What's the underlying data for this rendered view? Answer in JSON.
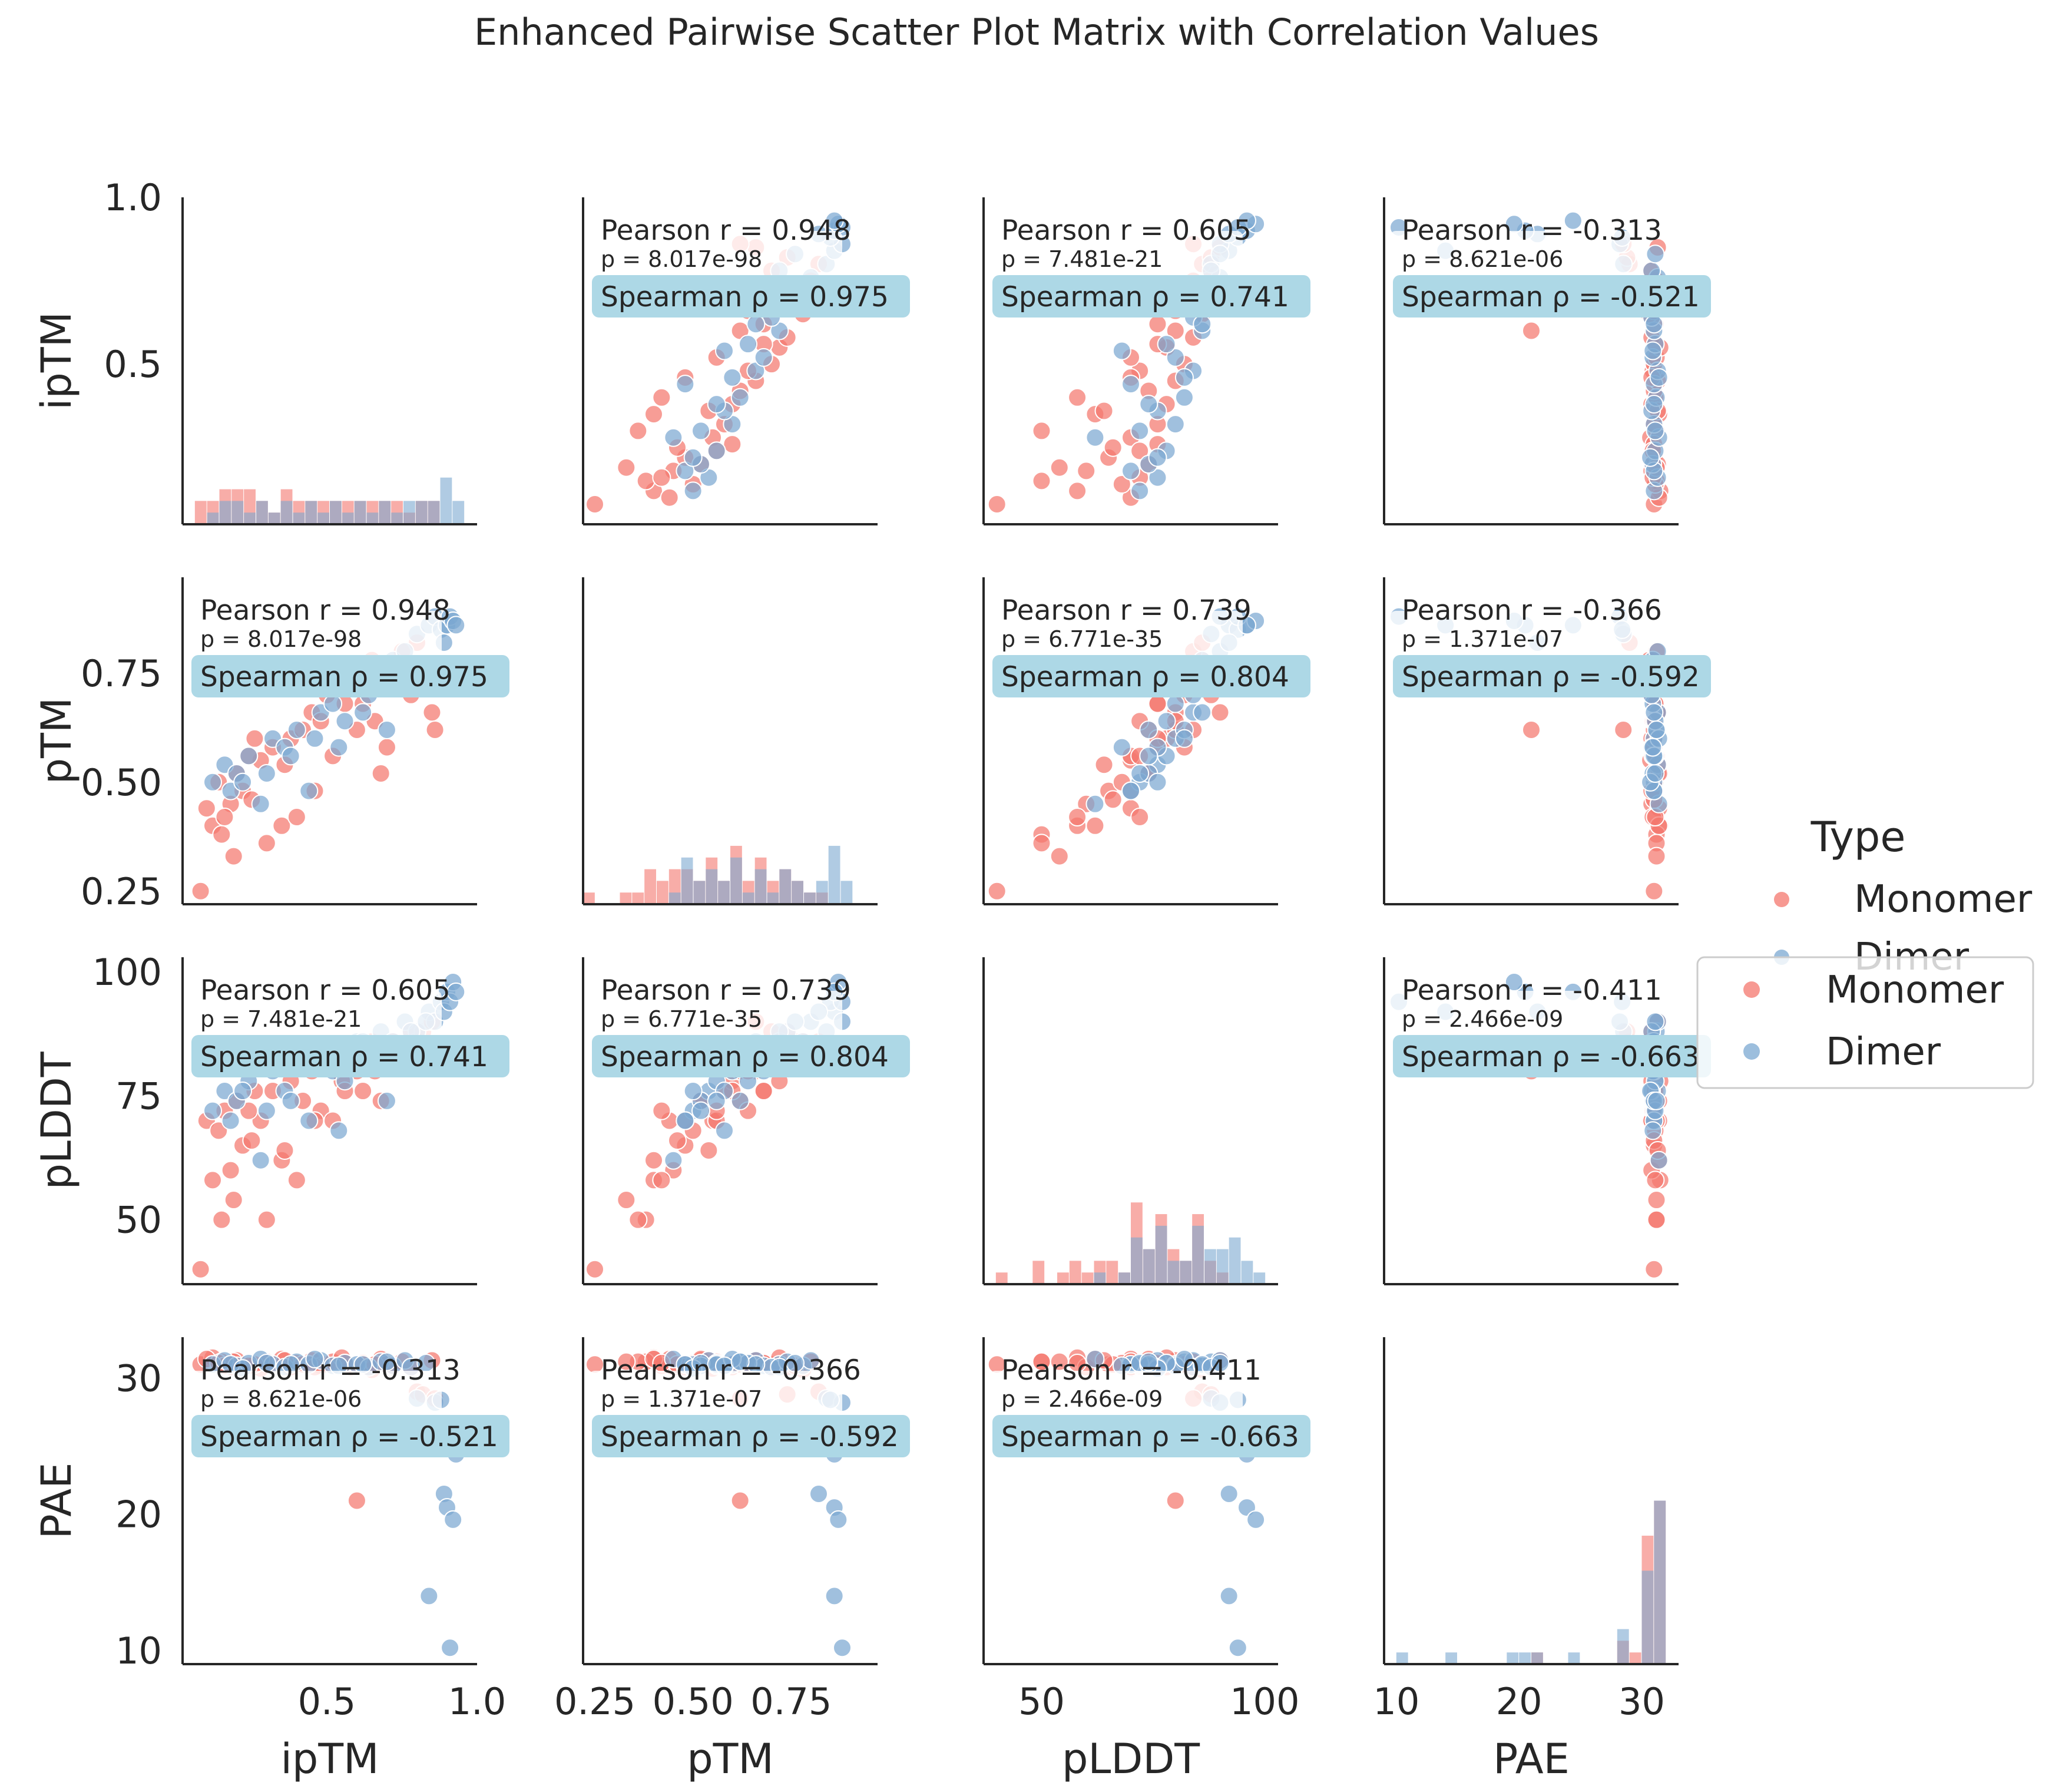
{
  "chart_data": {
    "type": "scatter",
    "title": "Enhanced Pairwise Scatter Plot Matrix with Correlation Values",
    "variables": [
      "ipTM",
      "pTM",
      "pLDDT",
      "PAE"
    ],
    "ranges": {
      "ipTM": [
        0.02,
        1.0
      ],
      "pTM": [
        0.22,
        0.97
      ],
      "pLDDT": [
        37,
        103
      ],
      "PAE": [
        9,
        33
      ]
    },
    "ticks": {
      "ipTM": {
        "row": [
          "0.5",
          "1.0"
        ],
        "col": [
          "0.5",
          "1.0"
        ]
      },
      "pTM": {
        "row": [
          "0.25",
          "0.50",
          "0.75"
        ],
        "col": [
          "0.25",
          "0.50",
          "0.75"
        ]
      },
      "pLDDT": {
        "row": [
          "50",
          "75",
          "100"
        ],
        "col": [
          "50",
          "100"
        ]
      },
      "PAE": {
        "row": [
          "10",
          "20",
          "30"
        ],
        "col": [
          "10",
          "20",
          "30"
        ]
      }
    },
    "legend": {
      "title": "Type",
      "placement": "right",
      "entries": [
        "Monomer",
        "Dimer"
      ]
    },
    "legend_duplicate": {
      "placement": "right",
      "entries": [
        "Monomer",
        "Dimer"
      ]
    },
    "series_colors": {
      "Monomer": "#f4776e",
      "Dimer": "#7ba8d1"
    },
    "box_color": "#add8e6",
    "correlations": [
      {
        "a": "ipTM",
        "b": "pTM",
        "pearson": "Pearson r = 0.948",
        "p": "p = 8.017e-98",
        "spearman": "Spearman ρ = 0.975"
      },
      {
        "a": "ipTM",
        "b": "pLDDT",
        "pearson": "Pearson r = 0.605",
        "p": "p = 7.481e-21",
        "spearman": "Spearman ρ = 0.741"
      },
      {
        "a": "ipTM",
        "b": "PAE",
        "pearson": "Pearson r = -0.313",
        "p": "p = 8.621e-06",
        "spearman": "Spearman ρ = -0.521"
      },
      {
        "a": "pTM",
        "b": "pLDDT",
        "pearson": "Pearson r = 0.739",
        "p": "p = 6.771e-35",
        "spearman": "Spearman ρ = 0.804"
      },
      {
        "a": "pTM",
        "b": "PAE",
        "pearson": "Pearson r = -0.366",
        "p": "p = 1.371e-07",
        "spearman": "Spearman ρ = -0.592"
      },
      {
        "a": "pLDDT",
        "b": "PAE",
        "pearson": "Pearson r = -0.411",
        "p": "p = 2.466e-09",
        "spearman": "Spearman ρ = -0.663"
      }
    ],
    "points": [
      {
        "t": "M",
        "ipTM": 0.08,
        "pTM": 0.25,
        "pLDDT": 40,
        "PAE": 31.0
      },
      {
        "t": "M",
        "ipTM": 0.12,
        "pTM": 0.4,
        "pLDDT": 58,
        "PAE": 31.5
      },
      {
        "t": "M",
        "ipTM": 0.15,
        "pTM": 0.38,
        "pLDDT": 50,
        "PAE": 31.2
      },
      {
        "t": "M",
        "ipTM": 0.18,
        "pTM": 0.45,
        "pLDDT": 60,
        "PAE": 30.8
      },
      {
        "t": "M",
        "ipTM": 0.22,
        "pTM": 0.48,
        "pLDDT": 65,
        "PAE": 31.0
      },
      {
        "t": "M",
        "ipTM": 0.1,
        "pTM": 0.44,
        "pLDDT": 70,
        "PAE": 31.4
      },
      {
        "t": "M",
        "ipTM": 0.14,
        "pTM": 0.5,
        "pLDDT": 68,
        "PAE": 31.1
      },
      {
        "t": "M",
        "ipTM": 0.16,
        "pTM": 0.42,
        "pLDDT": 72,
        "PAE": 30.9
      },
      {
        "t": "M",
        "ipTM": 0.2,
        "pTM": 0.52,
        "pLDDT": 74,
        "PAE": 31.3
      },
      {
        "t": "M",
        "ipTM": 0.25,
        "pTM": 0.46,
        "pLDDT": 66,
        "PAE": 31.0
      },
      {
        "t": "M",
        "ipTM": 0.28,
        "pTM": 0.55,
        "pLDDT": 70,
        "PAE": 30.7
      },
      {
        "t": "M",
        "ipTM": 0.3,
        "pTM": 0.36,
        "pLDDT": 50,
        "PAE": 31.2
      },
      {
        "t": "M",
        "ipTM": 0.32,
        "pTM": 0.58,
        "pLDDT": 76,
        "PAE": 31.0
      },
      {
        "t": "M",
        "ipTM": 0.35,
        "pTM": 0.4,
        "pLDDT": 62,
        "PAE": 31.4
      },
      {
        "t": "M",
        "ipTM": 0.38,
        "pTM": 0.6,
        "pLDDT": 78,
        "PAE": 30.8
      },
      {
        "t": "M",
        "ipTM": 0.4,
        "pTM": 0.42,
        "pLDDT": 58,
        "PAE": 31.1
      },
      {
        "t": "M",
        "ipTM": 0.42,
        "pTM": 0.62,
        "pLDDT": 74,
        "PAE": 31.0
      },
      {
        "t": "M",
        "ipTM": 0.45,
        "pTM": 0.66,
        "pLDDT": 80,
        "PAE": 31.3
      },
      {
        "t": "M",
        "ipTM": 0.48,
        "pTM": 0.64,
        "pLDDT": 72,
        "PAE": 30.9
      },
      {
        "t": "M",
        "ipTM": 0.5,
        "pTM": 0.7,
        "pLDDT": 82,
        "PAE": 31.0
      },
      {
        "t": "M",
        "ipTM": 0.52,
        "pTM": 0.56,
        "pLDDT": 70,
        "PAE": 31.2
      },
      {
        "t": "M",
        "ipTM": 0.55,
        "pTM": 0.72,
        "pLDDT": 78,
        "PAE": 31.5
      },
      {
        "t": "M",
        "ipTM": 0.58,
        "pTM": 0.74,
        "pLDDT": 84,
        "PAE": 30.8
      },
      {
        "t": "M",
        "ipTM": 0.6,
        "pTM": 0.62,
        "pLDDT": 80,
        "PAE": 21.0
      },
      {
        "t": "M",
        "ipTM": 0.62,
        "pTM": 0.68,
        "pLDDT": 76,
        "PAE": 31.1
      },
      {
        "t": "M",
        "ipTM": 0.65,
        "pTM": 0.78,
        "pLDDT": 86,
        "PAE": 30.6
      },
      {
        "t": "M",
        "ipTM": 0.68,
        "pTM": 0.52,
        "pLDDT": 74,
        "PAE": 31.4
      },
      {
        "t": "M",
        "ipTM": 0.7,
        "pTM": 0.58,
        "pLDDT": 82,
        "PAE": 31.0
      },
      {
        "t": "M",
        "ipTM": 0.72,
        "pTM": 0.76,
        "pLDDT": 86,
        "PAE": 30.9
      },
      {
        "t": "M",
        "ipTM": 0.75,
        "pTM": 0.8,
        "pLDDT": 84,
        "PAE": 31.2
      },
      {
        "t": "M",
        "ipTM": 0.78,
        "pTM": 0.7,
        "pLDDT": 88,
        "PAE": 30.7
      },
      {
        "t": "M",
        "ipTM": 0.8,
        "pTM": 0.82,
        "pLDDT": 86,
        "PAE": 29.0
      },
      {
        "t": "M",
        "ipTM": 0.82,
        "pTM": 0.74,
        "pLDDT": 88,
        "PAE": 28.8
      },
      {
        "t": "M",
        "ipTM": 0.85,
        "pTM": 0.66,
        "pLDDT": 90,
        "PAE": 31.3
      },
      {
        "t": "M",
        "ipTM": 0.86,
        "pTM": 0.62,
        "pLDDT": 84,
        "PAE": 28.5
      },
      {
        "t": "M",
        "ipTM": 0.26,
        "pTM": 0.6,
        "pLDDT": 76,
        "PAE": 31.0
      },
      {
        "t": "M",
        "ipTM": 0.36,
        "pTM": 0.54,
        "pLDDT": 64,
        "PAE": 31.3
      },
      {
        "t": "M",
        "ipTM": 0.46,
        "pTM": 0.48,
        "pLDDT": 70,
        "PAE": 30.8
      },
      {
        "t": "M",
        "ipTM": 0.56,
        "pTM": 0.68,
        "pLDDT": 76,
        "PAE": 31.1
      },
      {
        "t": "M",
        "ipTM": 0.66,
        "pTM": 0.64,
        "pLDDT": 80,
        "PAE": 31.0
      },
      {
        "t": "M",
        "ipTM": 0.19,
        "pTM": 0.33,
        "pLDDT": 54,
        "PAE": 31.2
      },
      {
        "t": "M",
        "ipTM": 0.24,
        "pTM": 0.56,
        "pLDDT": 72,
        "PAE": 30.9
      },
      {
        "t": "D",
        "ipTM": 0.12,
        "pTM": 0.5,
        "pLDDT": 72,
        "PAE": 31.0
      },
      {
        "t": "D",
        "ipTM": 0.16,
        "pTM": 0.54,
        "pLDDT": 76,
        "PAE": 31.3
      },
      {
        "t": "D",
        "ipTM": 0.2,
        "pTM": 0.52,
        "pLDDT": 74,
        "PAE": 30.9
      },
      {
        "t": "D",
        "ipTM": 0.24,
        "pTM": 0.56,
        "pLDDT": 78,
        "PAE": 31.1
      },
      {
        "t": "D",
        "ipTM": 0.28,
        "pTM": 0.45,
        "pLDDT": 62,
        "PAE": 31.4
      },
      {
        "t": "D",
        "ipTM": 0.32,
        "pTM": 0.6,
        "pLDDT": 80,
        "PAE": 31.0
      },
      {
        "t": "D",
        "ipTM": 0.36,
        "pTM": 0.58,
        "pLDDT": 76,
        "PAE": 30.8
      },
      {
        "t": "D",
        "ipTM": 0.4,
        "pTM": 0.62,
        "pLDDT": 82,
        "PAE": 31.2
      },
      {
        "t": "D",
        "ipTM": 0.44,
        "pTM": 0.48,
        "pLDDT": 70,
        "PAE": 31.0
      },
      {
        "t": "D",
        "ipTM": 0.48,
        "pTM": 0.66,
        "pLDDT": 84,
        "PAE": 31.3
      },
      {
        "t": "D",
        "ipTM": 0.52,
        "pTM": 0.68,
        "pLDDT": 80,
        "PAE": 30.9
      },
      {
        "t": "D",
        "ipTM": 0.56,
        "pTM": 0.64,
        "pLDDT": 78,
        "PAE": 31.1
      },
      {
        "t": "D",
        "ipTM": 0.6,
        "pTM": 0.72,
        "pLDDT": 86,
        "PAE": 31.0
      },
      {
        "t": "D",
        "ipTM": 0.64,
        "pTM": 0.7,
        "pLDDT": 84,
        "PAE": 30.8
      },
      {
        "t": "D",
        "ipTM": 0.68,
        "pTM": 0.74,
        "pLDDT": 88,
        "PAE": 31.2
      },
      {
        "t": "D",
        "ipTM": 0.72,
        "pTM": 0.78,
        "pLDDT": 86,
        "PAE": 30.9
      },
      {
        "t": "D",
        "ipTM": 0.76,
        "pTM": 0.8,
        "pLDDT": 90,
        "PAE": 31.3
      },
      {
        "t": "D",
        "ipTM": 0.8,
        "pTM": 0.84,
        "pLDDT": 88,
        "PAE": 28.5
      },
      {
        "t": "D",
        "ipTM": 0.84,
        "pTM": 0.86,
        "pLDDT": 92,
        "PAE": 14.0
      },
      {
        "t": "D",
        "ipTM": 0.86,
        "pTM": 0.88,
        "pLDDT": 90,
        "PAE": 28.2
      },
      {
        "t": "D",
        "ipTM": 0.88,
        "pTM": 0.85,
        "pLDDT": 94,
        "PAE": 28.4
      },
      {
        "t": "D",
        "ipTM": 0.89,
        "pTM": 0.82,
        "pLDDT": 92,
        "PAE": 21.5
      },
      {
        "t": "D",
        "ipTM": 0.9,
        "pTM": 0.86,
        "pLDDT": 96,
        "PAE": 20.5
      },
      {
        "t": "D",
        "ipTM": 0.91,
        "pTM": 0.88,
        "pLDDT": 94,
        "PAE": 10.2
      },
      {
        "t": "D",
        "ipTM": 0.92,
        "pTM": 0.87,
        "pLDDT": 98,
        "PAE": 19.6
      },
      {
        "t": "D",
        "ipTM": 0.93,
        "pTM": 0.86,
        "pLDDT": 96,
        "PAE": 24.4
      },
      {
        "t": "D",
        "ipTM": 0.18,
        "pTM": 0.48,
        "pLDDT": 70,
        "PAE": 31.0
      },
      {
        "t": "D",
        "ipTM": 0.22,
        "pTM": 0.5,
        "pLDDT": 76,
        "PAE": 30.7
      },
      {
        "t": "D",
        "ipTM": 0.3,
        "pTM": 0.52,
        "pLDDT": 72,
        "PAE": 31.1
      },
      {
        "t": "D",
        "ipTM": 0.38,
        "pTM": 0.56,
        "pLDDT": 74,
        "PAE": 31.0
      },
      {
        "t": "D",
        "ipTM": 0.46,
        "pTM": 0.6,
        "pLDDT": 82,
        "PAE": 31.4
      },
      {
        "t": "D",
        "ipTM": 0.54,
        "pTM": 0.58,
        "pLDDT": 68,
        "PAE": 30.9
      },
      {
        "t": "D",
        "ipTM": 0.62,
        "pTM": 0.66,
        "pLDDT": 86,
        "PAE": 31.0
      },
      {
        "t": "D",
        "ipTM": 0.7,
        "pTM": 0.62,
        "pLDDT": 74,
        "PAE": 31.2
      },
      {
        "t": "D",
        "ipTM": 0.78,
        "pTM": 0.72,
        "pLDDT": 88,
        "PAE": 30.8
      },
      {
        "t": "D",
        "ipTM": 0.83,
        "pTM": 0.76,
        "pLDDT": 90,
        "PAE": 31.1
      }
    ]
  }
}
